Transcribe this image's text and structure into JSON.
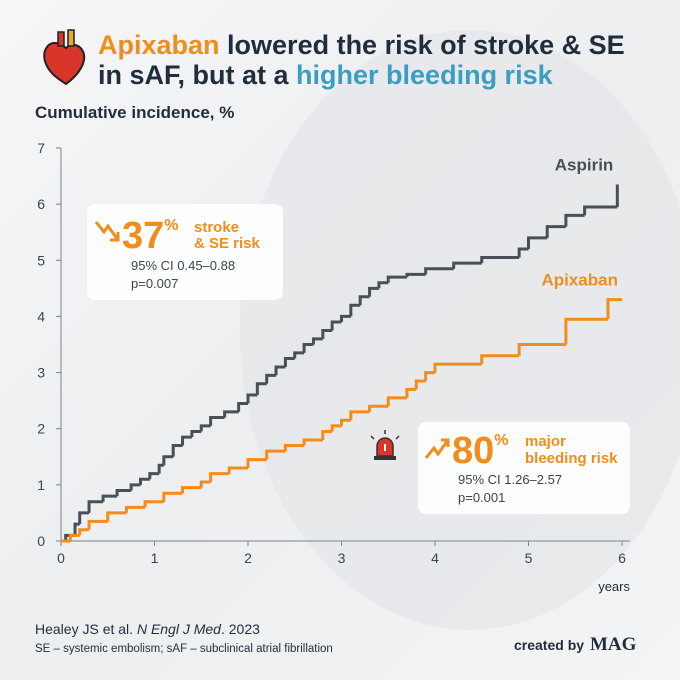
{
  "chart_data": {
    "type": "step",
    "title_parts": [
      "Apixaban",
      "lowered the risk of stroke & SE",
      "in sAF, but at a",
      "higher bleeding risk"
    ],
    "y_label": "Cumulative incidence, %",
    "x_label": "years",
    "xlim": [
      0,
      6
    ],
    "xticks": [
      0,
      1,
      2,
      3,
      4,
      5,
      6
    ],
    "ylim": [
      0,
      7
    ],
    "yticks": [
      0,
      1,
      2,
      3,
      4,
      5,
      6,
      7
    ],
    "series": [
      {
        "name": "Aspirin",
        "color": "#4a4f57",
        "x": [
          0,
          0.05,
          0.15,
          0.2,
          0.3,
          0.45,
          0.6,
          0.75,
          0.85,
          0.95,
          1.05,
          1.1,
          1.2,
          1.3,
          1.4,
          1.5,
          1.6,
          1.75,
          1.9,
          2.0,
          2.1,
          2.2,
          2.3,
          2.4,
          2.5,
          2.6,
          2.7,
          2.8,
          2.9,
          3.0,
          3.1,
          3.2,
          3.3,
          3.4,
          3.5,
          3.7,
          3.9,
          4.2,
          4.5,
          4.9,
          5.0,
          5.2,
          5.4,
          5.6,
          5.95
        ],
        "values": [
          0,
          0.1,
          0.3,
          0.5,
          0.7,
          0.8,
          0.9,
          1.0,
          1.1,
          1.2,
          1.35,
          1.5,
          1.7,
          1.85,
          1.95,
          2.05,
          2.2,
          2.3,
          2.45,
          2.6,
          2.8,
          2.95,
          3.1,
          3.25,
          3.35,
          3.5,
          3.6,
          3.75,
          3.9,
          4.0,
          4.2,
          4.35,
          4.5,
          4.6,
          4.7,
          4.75,
          4.85,
          4.95,
          5.05,
          5.2,
          5.4,
          5.6,
          5.8,
          5.95,
          6.35
        ]
      },
      {
        "name": "Apixaban",
        "color": "#f28c1a",
        "x": [
          0,
          0.1,
          0.2,
          0.3,
          0.5,
          0.7,
          0.9,
          1.1,
          1.3,
          1.5,
          1.6,
          1.8,
          2.0,
          2.2,
          2.4,
          2.6,
          2.8,
          2.9,
          3.0,
          3.1,
          3.3,
          3.5,
          3.7,
          3.8,
          3.9,
          4.0,
          4.5,
          4.9,
          5.4,
          5.85,
          6.0
        ],
        "values": [
          0,
          0.1,
          0.2,
          0.35,
          0.5,
          0.6,
          0.7,
          0.85,
          0.95,
          1.05,
          1.2,
          1.3,
          1.45,
          1.6,
          1.7,
          1.8,
          1.95,
          2.05,
          2.15,
          2.3,
          2.4,
          2.55,
          2.7,
          2.85,
          3.0,
          3.15,
          3.3,
          3.5,
          3.95,
          4.3,
          4.3
        ]
      }
    ],
    "annotations": [
      {
        "big": "37",
        "unit": "%",
        "lines": [
          "stroke",
          "& SE risk"
        ],
        "ci": "95% CI 0.45–0.88",
        "p": "p=0.007"
      },
      {
        "big": "80",
        "unit": "%",
        "lines": [
          "major",
          "bleeding risk"
        ],
        "ci": "95% CI 1.26–2.57",
        "p": "p=0.001"
      }
    ],
    "citation": [
      "Healey JS et al. ",
      "N Engl J Med",
      ". 2023"
    ],
    "footnote": "SE – systemic embolism; sAF – subclinical atrial fibrillation",
    "credit": [
      "created by",
      "MAG"
    ]
  }
}
